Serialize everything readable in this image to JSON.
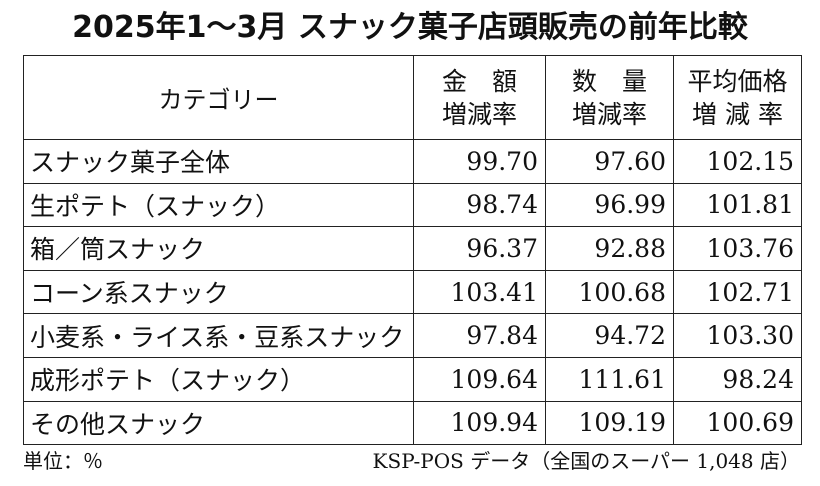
{
  "title": "2025年1～3月 スナック菓子店頭販売の前年比較",
  "table": {
    "headers": {
      "category": "カテゴリー",
      "amount": [
        "金　額",
        "増減率"
      ],
      "quantity": [
        "数　量",
        "増減率"
      ],
      "avg_price": [
        "平均価格",
        "増 減 率"
      ]
    },
    "rows": [
      {
        "category": "スナック菓子全体",
        "amount": "99.70",
        "quantity": "97.60",
        "avg_price": "102.15"
      },
      {
        "category": "生ポテト（スナック）",
        "amount": "98.74",
        "quantity": "96.99",
        "avg_price": "101.81"
      },
      {
        "category": "箱／筒スナック",
        "amount": "96.37",
        "quantity": "92.88",
        "avg_price": "103.76"
      },
      {
        "category": "コーン系スナック",
        "amount": "103.41",
        "quantity": "100.68",
        "avg_price": "102.71"
      },
      {
        "category": "小麦系・ライス系・豆系スナック",
        "amount": "97.84",
        "quantity": "94.72",
        "avg_price": "103.30"
      },
      {
        "category": "成形ポテト（スナック）",
        "amount": "109.64",
        "quantity": "111.61",
        "avg_price": "98.24"
      },
      {
        "category": "その他スナック",
        "amount": "109.94",
        "quantity": "109.19",
        "avg_price": "100.69"
      }
    ]
  },
  "footer": {
    "unit": "単位：％",
    "source": "KSP-POS データ（全国のスーパー 1,048 店）"
  }
}
